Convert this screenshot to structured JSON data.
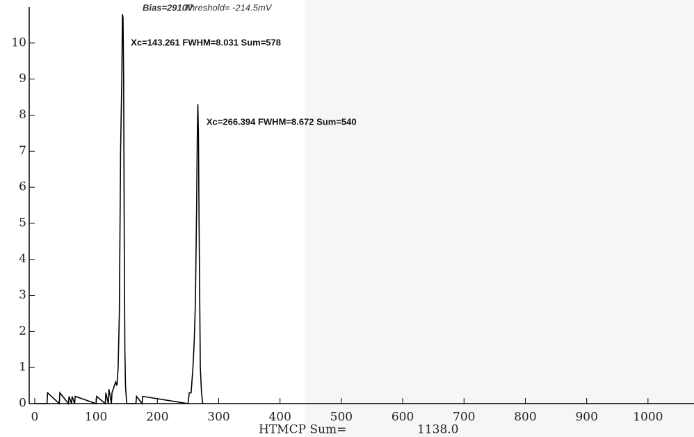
{
  "chart_data": {
    "type": "line",
    "header": [
      "Bias=2910V",
      "Threshold= -214.5mV"
    ],
    "annotations": [
      {
        "text": "Xc=143.261  FWHM=8.031  Sum=578",
        "x": 143.261
      },
      {
        "text": "Xc=266.394  FWHM=8.672  Sum=540",
        "x": 266.394
      }
    ],
    "footer": [
      "HTMCP Sum=",
      "1138.0"
    ],
    "x": [
      0,
      20,
      21,
      40,
      41,
      55,
      56,
      60,
      61,
      65,
      66,
      100,
      101,
      115,
      116,
      120,
      121,
      125,
      126,
      132,
      134,
      136,
      138,
      140,
      142,
      143,
      144,
      145,
      146,
      147,
      148,
      150,
      165,
      166,
      175,
      176,
      250,
      252,
      255,
      258,
      260,
      262,
      264,
      265,
      266,
      267,
      268,
      269,
      270,
      272,
      274
    ],
    "values": [
      0,
      0,
      0.3,
      0,
      0.3,
      0,
      0.2,
      0,
      0.2,
      0,
      0.2,
      0,
      0.2,
      0,
      0.3,
      0,
      0.4,
      0,
      0.3,
      0.6,
      0.5,
      1,
      2.5,
      7,
      9,
      10.8,
      10.7,
      9,
      4.5,
      1.5,
      0.5,
      0,
      0,
      0.2,
      0,
      0.2,
      0,
      0.3,
      0.3,
      1,
      1.7,
      2.8,
      5.5,
      7.3,
      8.3,
      7.4,
      5,
      3,
      1,
      0.3,
      0
    ],
    "color": "#000000",
    "xlim": [
      -9,
      1075
    ],
    "ylim": [
      0,
      11
    ],
    "xticks": [
      0,
      100,
      200,
      300,
      400,
      500,
      600,
      700,
      800,
      900,
      1000
    ],
    "yticks": [
      0,
      1,
      2,
      3,
      4,
      5,
      6,
      7,
      8,
      9,
      10
    ]
  }
}
